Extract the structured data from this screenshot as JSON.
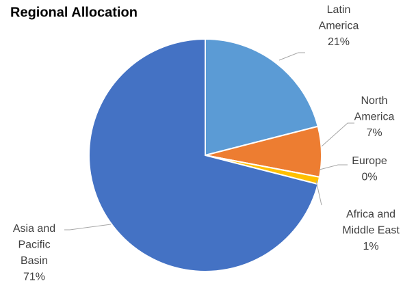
{
  "chart_data": {
    "type": "pie",
    "title": "Regional Allocation",
    "categories": [
      "Latin America",
      "North America",
      "Europe",
      "Africa and Middle East",
      "Asia and Pacific Basin"
    ],
    "values": [
      21,
      7,
      0,
      1,
      71
    ],
    "value_labels": [
      "21%",
      "7%",
      "0%",
      "1%",
      "71%"
    ],
    "colors": [
      "#5b9bd5",
      "#ed7d31",
      "#a5a5a5",
      "#ffc000",
      "#4472c4"
    ]
  }
}
